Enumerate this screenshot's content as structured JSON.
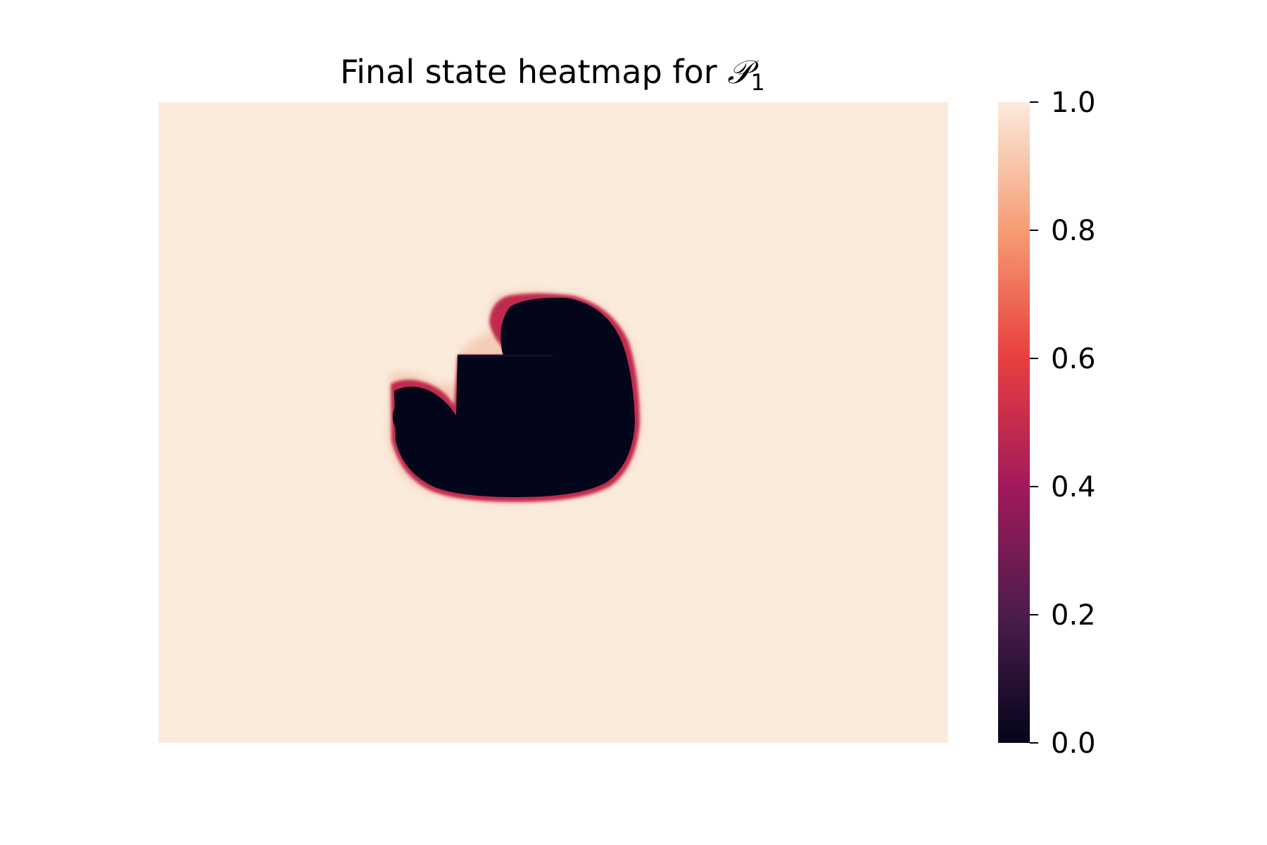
{
  "chart_data": {
    "type": "heatmap",
    "title": "Final state heatmap for ",
    "title_math": "𝒫",
    "title_subscript": "1",
    "xlabel": "",
    "ylabel": "",
    "grid": false,
    "axes_ticks_shown": false,
    "colormap": "rocket",
    "colorbar": {
      "range": [
        0.0,
        1.0
      ],
      "ticks": [
        0.0,
        0.2,
        0.4,
        0.6,
        0.8,
        1.0
      ],
      "tick_labels": [
        "0.0",
        "0.2",
        "0.4",
        "0.6",
        "0.8",
        "1.0"
      ],
      "stops": [
        "#03051a",
        "#4c1d4b",
        "#a11a5b",
        "#e83f3f",
        "#f69c73",
        "#faebdd"
      ]
    },
    "grid_shape": {
      "rows": 100,
      "cols": 123
    },
    "background_value": 1.0,
    "region_value": 0.0,
    "region_description": "central low-value (0.0) blob with notch at upper-left, bordered by a thin gradient edge (about 0.2–0.8)"
  }
}
